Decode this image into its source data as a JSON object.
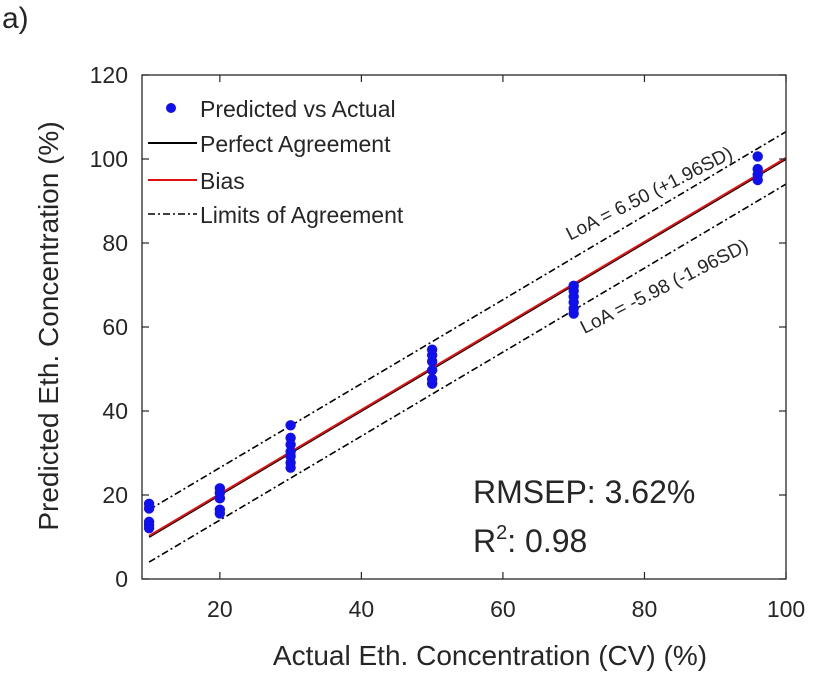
{
  "panel_label": "a)",
  "colors": {
    "points": "#1010ee",
    "perfect": "#000000",
    "bias": "#e01010",
    "loa": "#000000",
    "axis": "#262626"
  },
  "stats": {
    "rmsep": "RMSEP: 3.62%",
    "r2_prefix": "R",
    "r2_sup": "2",
    "r2_value": ": 0.98"
  },
  "chart_data": {
    "type": "scatter",
    "xlabel": "Actual Eth. Concentration (CV) (%)",
    "ylabel": "Predicted Eth. Concentration (%)",
    "xlim": [
      9,
      100
    ],
    "ylim": [
      0,
      120
    ],
    "xticks": [
      20,
      40,
      60,
      80,
      100
    ],
    "yticks": [
      0,
      20,
      40,
      60,
      80,
      100,
      120
    ],
    "grid": false,
    "legend_position": "top-left",
    "legend": [
      {
        "label": "Predicted vs Actual",
        "kind": "marker"
      },
      {
        "label": "Perfect Agreement",
        "kind": "solid-black"
      },
      {
        "label": "Bias",
        "kind": "solid-red"
      },
      {
        "label": "Limits of Agreement",
        "kind": "dashdot"
      }
    ],
    "series": [
      {
        "name": "Predicted vs Actual",
        "points": [
          [
            10,
            17.9
          ],
          [
            10,
            16.8
          ],
          [
            10,
            13.6
          ],
          [
            10,
            12.8
          ],
          [
            10,
            12.1
          ],
          [
            20,
            21.6
          ],
          [
            20,
            20.5
          ],
          [
            20,
            19.2
          ],
          [
            20,
            16.5
          ],
          [
            20,
            15.6
          ],
          [
            30,
            36.6
          ],
          [
            30,
            33.6
          ],
          [
            30,
            32.0
          ],
          [
            30,
            30.3
          ],
          [
            30,
            29.2
          ],
          [
            30,
            27.7
          ],
          [
            30,
            26.5
          ],
          [
            50,
            54.6
          ],
          [
            50,
            53.3
          ],
          [
            50,
            51.8
          ],
          [
            50,
            49.7
          ],
          [
            50,
            47.6
          ],
          [
            50,
            46.5
          ],
          [
            70,
            69.8
          ],
          [
            70,
            68.6
          ],
          [
            70,
            67.2
          ],
          [
            70,
            65.9
          ],
          [
            70,
            64.4
          ],
          [
            70,
            63.2
          ],
          [
            96,
            100.6
          ],
          [
            96,
            97.6
          ],
          [
            96,
            96.3
          ],
          [
            96,
            95.0
          ]
        ]
      }
    ],
    "lines": [
      {
        "name": "Perfect Agreement",
        "x": [
          10,
          100
        ],
        "y": [
          10,
          100
        ]
      },
      {
        "name": "Bias",
        "x": [
          10,
          100
        ],
        "y": [
          10.26,
          100.26
        ]
      },
      {
        "name": "Limits of Agreement",
        "x": [
          10,
          100
        ],
        "y": [
          16.5,
          106.5
        ]
      },
      {
        "name": "Limits of Agreement",
        "x": [
          10,
          100
        ],
        "y": [
          4.02,
          94.02
        ]
      }
    ],
    "annotations": [
      "LoA = 6.50 (+1.96SD)",
      "LoA = -5.98 (-1.96SD)"
    ]
  }
}
